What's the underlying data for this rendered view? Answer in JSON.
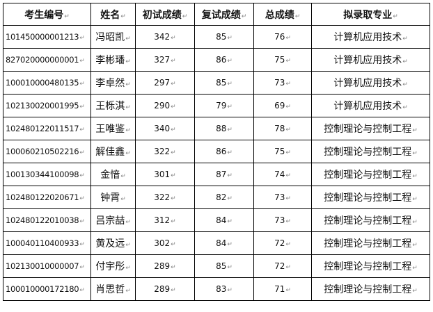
{
  "table": {
    "headers": [
      "考生编号",
      "姓名",
      "初试成绩",
      "复试成绩",
      "总成绩",
      "拟录取专业"
    ],
    "paragraph_mark": "↵",
    "rows": [
      [
        "101450000001213",
        "冯昭凯",
        "342",
        "85",
        "76",
        "计算机应用技术"
      ],
      [
        "827020000000001",
        "李彬璠",
        "327",
        "86",
        "75",
        "计算机应用技术"
      ],
      [
        "100010000480135",
        "李卓然",
        "297",
        "85",
        "73",
        "计算机应用技术"
      ],
      [
        "102130020001995",
        "王栎淇",
        "290",
        "79",
        "69",
        "计算机应用技术"
      ],
      [
        "102480122011517",
        "王唯鉴",
        "340",
        "88",
        "78",
        "控制理论与控制工程"
      ],
      [
        "100060210502216",
        "解佳鑫",
        "322",
        "86",
        "75",
        "控制理论与控制工程"
      ],
      [
        "100130344100098",
        "金愔",
        "301",
        "87",
        "74",
        "控制理论与控制工程"
      ],
      [
        "102480122020671",
        "钟霄",
        "322",
        "82",
        "73",
        "控制理论与控制工程"
      ],
      [
        "102480122010038",
        "吕宗喆",
        "312",
        "84",
        "73",
        "控制理论与控制工程"
      ],
      [
        "100040110400933",
        "黄及远",
        "302",
        "84",
        "72",
        "控制理论与控制工程"
      ],
      [
        "102130010000007",
        "付宇彤",
        "289",
        "85",
        "72",
        "控制理论与控制工程"
      ],
      [
        "100010000172180",
        "肖思哲",
        "289",
        "83",
        "71",
        "控制理论与控制工程"
      ]
    ]
  }
}
